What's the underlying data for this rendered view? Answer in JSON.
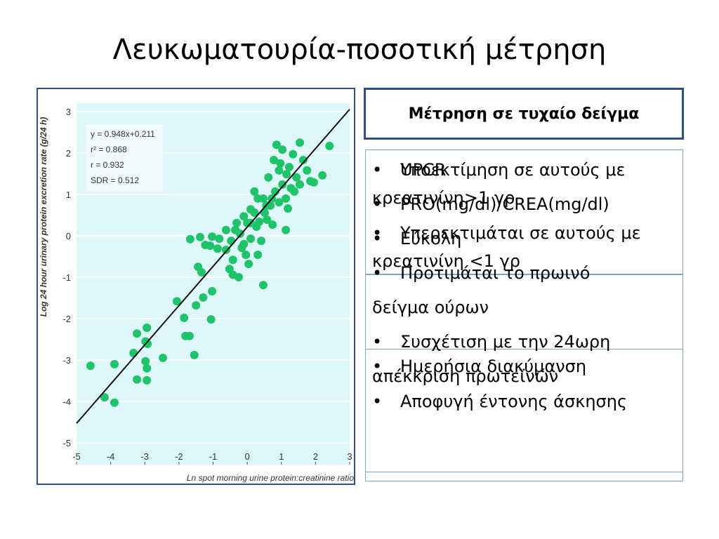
{
  "title": "Λευκωματουρία-ποσοτική μέτρηση",
  "chart_data": {
    "type": "scatter",
    "x_label": "Ln spot morning urine protein:creatinine ratio",
    "y_label": "Log 24 hour urinary protein excretion rate (g/24 h)",
    "annotations": [
      "y = 0.948x+0.211",
      "r² = 0.868",
      "r = 0.932",
      "SDR = 0.512"
    ],
    "trendline": {
      "slope": 0.948,
      "intercept": 0.211
    },
    "xlim": [
      -5,
      3
    ],
    "ylim": [
      -5,
      3
    ],
    "xticks": [
      -5,
      -4,
      -3,
      -2,
      -1,
      0,
      1,
      2,
      3
    ],
    "yticks": [
      -5,
      -4,
      -3,
      -2,
      -1,
      0,
      1,
      2,
      3
    ],
    "grid": true,
    "color": "#1fc46a",
    "x": [
      -4.59,
      -3.89,
      -4.18,
      -3.89,
      -3.23,
      -2.94,
      -2.98,
      -2.92,
      -3.33,
      -2.98,
      -2.94,
      -3.23,
      -2.94,
      -2.47,
      -2.06,
      -1.85,
      -1.81,
      -1.69,
      -1.55,
      -1.06,
      -1.5,
      -1.29,
      -1.34,
      -1.44,
      -1.67,
      -1.38,
      -1.09,
      -1.03,
      -0.87,
      -0.62,
      -0.52,
      -0.42,
      -0.25,
      -0.47,
      -0.35,
      -0.21,
      -0.1,
      0.0,
      0.1,
      0.21,
      0.27,
      0.31,
      0.41,
      0.47,
      0.58,
      0.68,
      0.82,
      0.93,
      1.03,
      1.13,
      1.19,
      0.93,
      1.03,
      0.86,
      1.23,
      1.34,
      1.44,
      1.54,
      1.64,
      1.85,
      1.95,
      2.2,
      2.41,
      1.13,
      0.72,
      0.51,
      0.21,
      0.31,
      0.1,
      -0.1,
      -0.31,
      -0.62,
      -0.82,
      -0.16,
      -0.04,
      0.47,
      0.62,
      0.78,
      1.38,
      1.54,
      1.75,
      0.97,
      1.15,
      1.28,
      0.56,
      0.1,
      0.35,
      0.74,
      -1.03,
      -1.23,
      -0.42,
      0.04
    ],
    "y": [
      -3.14,
      -3.1,
      -3.9,
      -4.03,
      -2.36,
      -2.22,
      -2.55,
      -2.61,
      -2.83,
      -3.03,
      -3.2,
      -3.47,
      -3.49,
      -2.95,
      -1.58,
      -1.98,
      -2.42,
      -2.42,
      -2.88,
      -2.02,
      -1.68,
      -1.49,
      -0.88,
      -0.75,
      -0.08,
      -0.03,
      -0.24,
      -1.34,
      -0.31,
      -0.34,
      -0.8,
      -0.94,
      -1.0,
      -0.12,
      0.14,
      0.05,
      -0.2,
      0.31,
      -0.07,
      0.56,
      0.22,
      -0.46,
      -0.12,
      -1.19,
      0.39,
      0.73,
      1.07,
      0.81,
      1.24,
      0.14,
      0.66,
      1.58,
      2.08,
      2.2,
      1.66,
      1.97,
      1.41,
      2.25,
      1.83,
      1.32,
      1.29,
      1.46,
      2.17,
      0.9,
      0.9,
      0.56,
      1.07,
      0.9,
      0.64,
      0.47,
      0.31,
      0.14,
      -0.07,
      -0.29,
      -0.46,
      0.9,
      1.41,
      1.83,
      1.07,
      1.24,
      1.58,
      1.75,
      1.49,
      1.15,
      0.73,
      0.31,
      0.34,
      0.27,
      -0.02,
      -0.22,
      -0.58,
      -0.68
    ]
  },
  "header_box": "Μέτρηση σε τυχαίο δείγμα",
  "list_a": [
    "UPCR",
    "PRO(mg/dl)/CREA(mg/dl)",
    "Εύκολη",
    "Προτιμάται το πρωινό δείγμα ούρων",
    "Συσχέτιση με την 24ωρη απέκκριση πρωτεϊνών"
  ],
  "list_b": [
    "Υποεκτίμηση σε αυτούς με κρεατινίνη>1 γρ",
    "Υπερεκτιμάται σε αυτούς με κρεατινίνη <1 γρ"
  ],
  "list_c": [
    "Ημερήσια διακύμανση",
    "Αποφυγή έντονης άσκησης"
  ]
}
